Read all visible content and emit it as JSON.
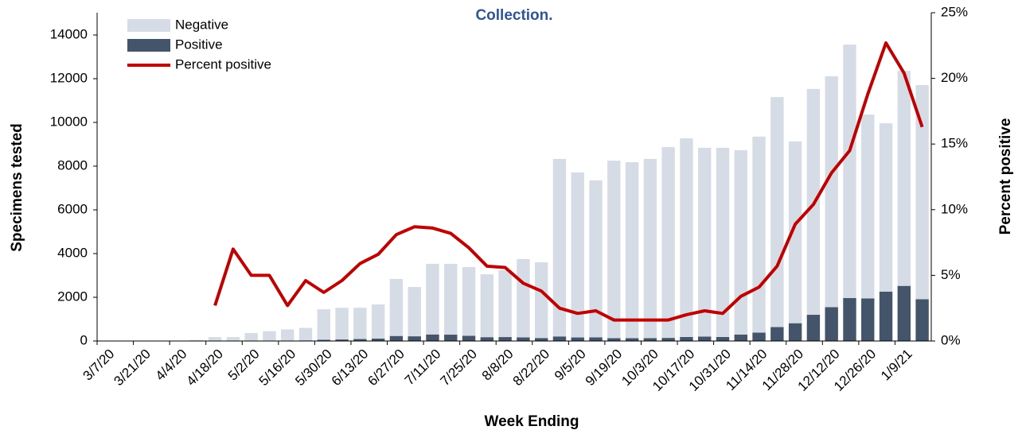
{
  "chart_data": {
    "type": "bar-line",
    "title": "Collection.",
    "x_label": "Week Ending",
    "y_label": "Specimens tested",
    "y2_label": "Percent positive",
    "categories": [
      "3/7/20",
      null,
      "3/21/20",
      null,
      "4/4/20",
      null,
      "4/18/20",
      null,
      "5/2/20",
      null,
      "5/16/20",
      null,
      "5/30/20",
      null,
      "6/13/20",
      null,
      "6/27/20",
      null,
      "7/11/20",
      null,
      "7/25/20",
      null,
      "8/8/20",
      null,
      "8/22/20",
      null,
      "9/5/20",
      null,
      "9/19/20",
      null,
      "10/3/20",
      null,
      "10/17/20",
      null,
      "10/31/20",
      null,
      "11/14/20",
      null,
      "11/28/20",
      null,
      "12/12/20",
      null,
      "12/26/20",
      null,
      "1/9/21",
      null
    ],
    "series": [
      {
        "name": "Negative",
        "color": "#d6dce5",
        "values": [
          0,
          0,
          0,
          0,
          0,
          50,
          175,
          167,
          342,
          428,
          516,
          572,
          1396,
          1450,
          1430,
          1560,
          2610,
          2255,
          3230,
          3240,
          3140,
          2875,
          3060,
          3585,
          3463,
          8122,
          7548,
          7181,
          8118,
          8049,
          8197,
          8728,
          9085,
          8637,
          8654,
          8433,
          8967,
          10524,
          8317,
          10331,
          10560,
          11594,
          8412,
          7699,
          9839,
          9801
        ]
      },
      {
        "name": "Positive",
        "color": "#44546a",
        "values": [
          0,
          0,
          0,
          0,
          0,
          0,
          5,
          13,
          18,
          22,
          14,
          28,
          54,
          70,
          90,
          110,
          230,
          215,
          300,
          290,
          240,
          175,
          180,
          165,
          137,
          208,
          162,
          169,
          132,
          131,
          133,
          142,
          185,
          203,
          186,
          297,
          383,
          636,
          813,
          1199,
          1550,
          1966,
          1948,
          2261,
          2521,
          1909
        ]
      },
      {
        "name": "Percent positive",
        "color": "#c00000",
        "axis": "y2",
        "values": [
          null,
          null,
          null,
          null,
          null,
          null,
          2.7,
          7.0,
          5.0,
          5.0,
          2.7,
          4.6,
          3.7,
          4.6,
          5.9,
          6.6,
          8.1,
          8.7,
          8.6,
          8.2,
          7.1,
          5.7,
          5.6,
          4.4,
          3.8,
          2.5,
          2.1,
          2.3,
          1.6,
          1.6,
          1.6,
          1.6,
          2.0,
          2.3,
          2.1,
          3.4,
          4.1,
          5.7,
          8.9,
          10.4,
          12.8,
          14.5,
          18.8,
          22.7,
          20.4,
          16.3
        ]
      }
    ],
    "ylim": [
      0,
      14000
    ],
    "yticks": [
      0,
      2000,
      4000,
      6000,
      8000,
      10000,
      12000,
      14000
    ],
    "y2lim": [
      0,
      25
    ],
    "y2ticks": [
      {
        "value": 0,
        "label": "0%"
      },
      {
        "value": 5,
        "label": "5%"
      },
      {
        "value": 10,
        "label": "10%"
      },
      {
        "value": 15,
        "label": "15%"
      },
      {
        "value": 20,
        "label": "20%"
      },
      {
        "value": 25,
        "label": "25%"
      }
    ],
    "legend": "top-left"
  }
}
